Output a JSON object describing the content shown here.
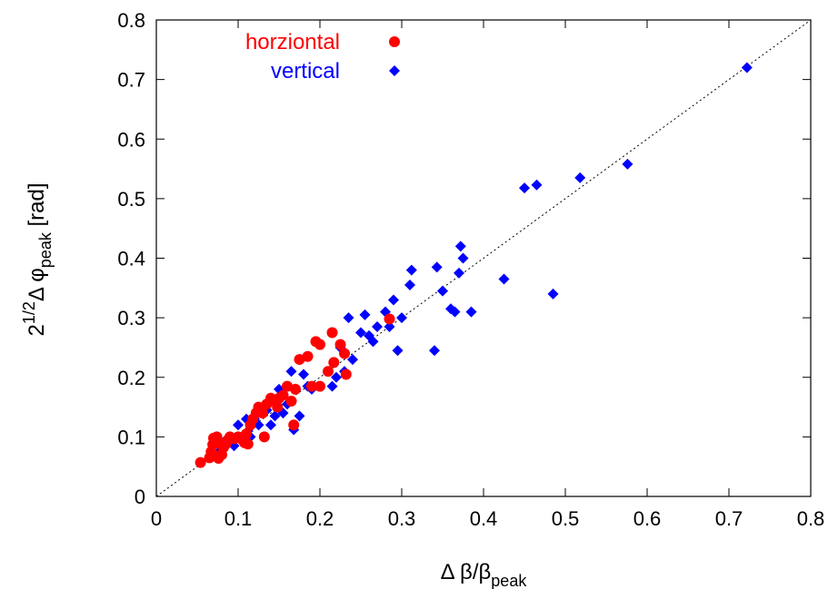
{
  "chart_data": {
    "type": "scatter",
    "title": "",
    "xlabel": {
      "main": "Δ β/β",
      "sub": "peak"
    },
    "ylabel": {
      "sup": "1/2",
      "main": "Δ φ",
      "sub": "peak",
      "unit": " [rad]",
      "lead": "2"
    },
    "xlim": [
      0,
      0.8
    ],
    "ylim": [
      0,
      0.8
    ],
    "xticks": [
      "0",
      "0.1",
      "0.2",
      "0.3",
      "0.4",
      "0.5",
      "0.6",
      "0.7",
      "0.8"
    ],
    "yticks": [
      "0",
      "0.1",
      "0.2",
      "0.3",
      "0.4",
      "0.5",
      "0.6",
      "0.7",
      "0.8"
    ],
    "grid": false,
    "legend_position": "top-left",
    "reference_line": {
      "type": "diagonal",
      "style": "dotted",
      "from": [
        0,
        0
      ],
      "to": [
        0.8,
        0.8
      ]
    },
    "series": [
      {
        "name": "horziontal",
        "color": "#ff0000",
        "marker": "circle",
        "points": [
          [
            0.054,
            0.057
          ],
          [
            0.065,
            0.065
          ],
          [
            0.067,
            0.075
          ],
          [
            0.069,
            0.087
          ],
          [
            0.07,
            0.098
          ],
          [
            0.072,
            0.068
          ],
          [
            0.074,
            0.1
          ],
          [
            0.076,
            0.064
          ],
          [
            0.078,
            0.09
          ],
          [
            0.08,
            0.07
          ],
          [
            0.082,
            0.082
          ],
          [
            0.085,
            0.088
          ],
          [
            0.088,
            0.095
          ],
          [
            0.09,
            0.1
          ],
          [
            0.095,
            0.097
          ],
          [
            0.1,
            0.1
          ],
          [
            0.105,
            0.095
          ],
          [
            0.108,
            0.09
          ],
          [
            0.11,
            0.105
          ],
          [
            0.112,
            0.088
          ],
          [
            0.115,
            0.12
          ],
          [
            0.118,
            0.13
          ],
          [
            0.122,
            0.14
          ],
          [
            0.125,
            0.15
          ],
          [
            0.13,
            0.14
          ],
          [
            0.132,
            0.1
          ],
          [
            0.135,
            0.155
          ],
          [
            0.14,
            0.165
          ],
          [
            0.145,
            0.16
          ],
          [
            0.148,
            0.15
          ],
          [
            0.15,
            0.165
          ],
          [
            0.155,
            0.17
          ],
          [
            0.16,
            0.185
          ],
          [
            0.165,
            0.16
          ],
          [
            0.168,
            0.12
          ],
          [
            0.17,
            0.18
          ],
          [
            0.175,
            0.23
          ],
          [
            0.185,
            0.235
          ],
          [
            0.19,
            0.185
          ],
          [
            0.195,
            0.26
          ],
          [
            0.2,
            0.255
          ],
          [
            0.2,
            0.185
          ],
          [
            0.21,
            0.21
          ],
          [
            0.215,
            0.275
          ],
          [
            0.217,
            0.225
          ],
          [
            0.225,
            0.255
          ],
          [
            0.23,
            0.24
          ],
          [
            0.232,
            0.205
          ],
          [
            0.285,
            0.298
          ]
        ]
      },
      {
        "name": "vertical",
        "color": "#0000ff",
        "marker": "diamond",
        "points": [
          [
            0.075,
            0.072
          ],
          [
            0.08,
            0.08
          ],
          [
            0.085,
            0.095
          ],
          [
            0.095,
            0.085
          ],
          [
            0.1,
            0.12
          ],
          [
            0.105,
            0.1
          ],
          [
            0.11,
            0.13
          ],
          [
            0.112,
            0.11
          ],
          [
            0.115,
            0.1
          ],
          [
            0.12,
            0.13
          ],
          [
            0.125,
            0.12
          ],
          [
            0.13,
            0.14
          ],
          [
            0.135,
            0.145
          ],
          [
            0.14,
            0.12
          ],
          [
            0.145,
            0.135
          ],
          [
            0.15,
            0.18
          ],
          [
            0.155,
            0.14
          ],
          [
            0.16,
            0.155
          ],
          [
            0.165,
            0.21
          ],
          [
            0.168,
            0.112
          ],
          [
            0.175,
            0.135
          ],
          [
            0.18,
            0.205
          ],
          [
            0.185,
            0.185
          ],
          [
            0.19,
            0.18
          ],
          [
            0.215,
            0.185
          ],
          [
            0.22,
            0.2
          ],
          [
            0.225,
            0.25
          ],
          [
            0.23,
            0.21
          ],
          [
            0.235,
            0.3
          ],
          [
            0.24,
            0.23
          ],
          [
            0.25,
            0.275
          ],
          [
            0.255,
            0.305
          ],
          [
            0.26,
            0.27
          ],
          [
            0.265,
            0.26
          ],
          [
            0.27,
            0.285
          ],
          [
            0.28,
            0.31
          ],
          [
            0.285,
            0.285
          ],
          [
            0.29,
            0.33
          ],
          [
            0.295,
            0.245
          ],
          [
            0.3,
            0.3
          ],
          [
            0.31,
            0.355
          ],
          [
            0.312,
            0.38
          ],
          [
            0.34,
            0.245
          ],
          [
            0.343,
            0.385
          ],
          [
            0.35,
            0.345
          ],
          [
            0.36,
            0.315
          ],
          [
            0.365,
            0.31
          ],
          [
            0.37,
            0.375
          ],
          [
            0.372,
            0.42
          ],
          [
            0.375,
            0.4
          ],
          [
            0.385,
            0.31
          ],
          [
            0.425,
            0.365
          ],
          [
            0.45,
            0.518
          ],
          [
            0.465,
            0.523
          ],
          [
            0.485,
            0.34
          ],
          [
            0.518,
            0.535
          ],
          [
            0.576,
            0.558
          ],
          [
            0.722,
            0.72
          ]
        ]
      }
    ]
  }
}
